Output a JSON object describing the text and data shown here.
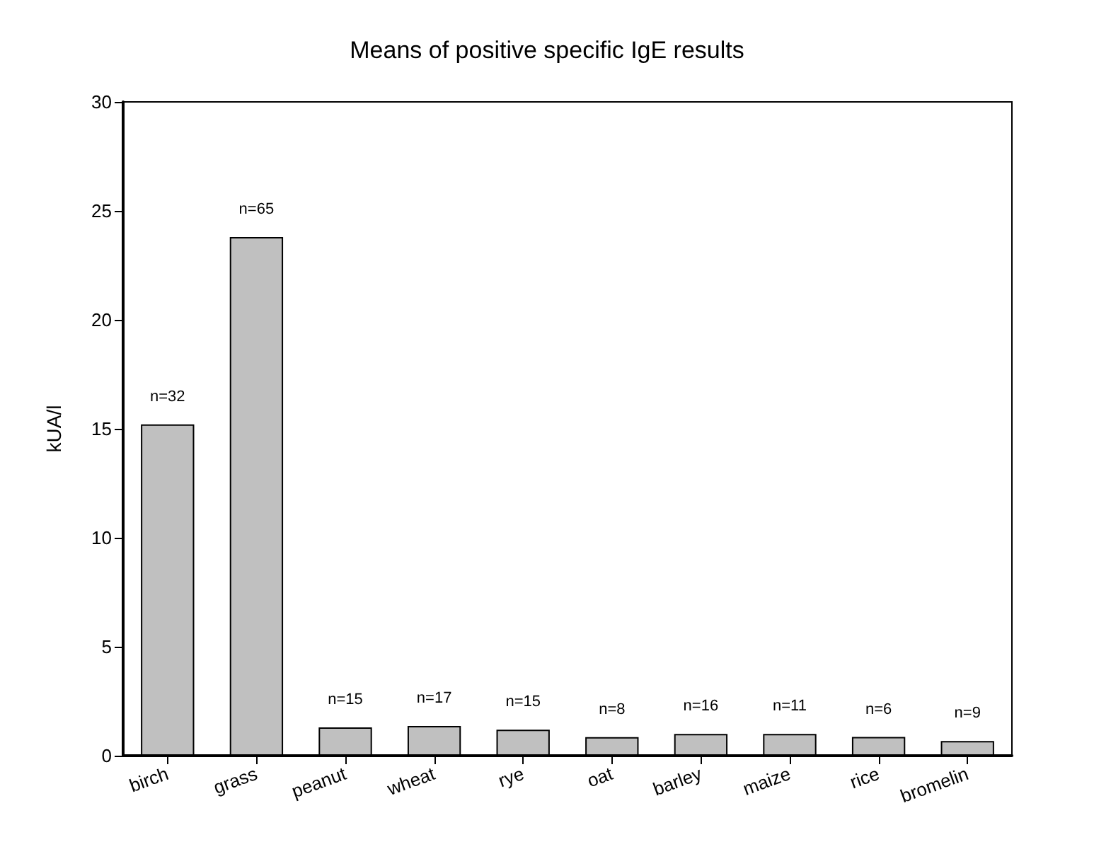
{
  "chart_data": {
    "type": "bar",
    "title": "Means of positive specific IgE results",
    "ylabel": "kUA/l",
    "categories": [
      "birch",
      "grass",
      "peanut",
      "wheat",
      "rye",
      "oat",
      "barley",
      "maize",
      "rice",
      "bromelin"
    ],
    "values": [
      15.2,
      23.8,
      1.3,
      1.36,
      1.19,
      0.85,
      1.0,
      1.0,
      0.86,
      0.67
    ],
    "annotations": [
      {
        "text": "n=32",
        "x": "birch",
        "y": 15.2
      },
      {
        "text": "n=65",
        "x": "grass",
        "y": 23.8
      },
      {
        "text": "n=15",
        "x": "peanut",
        "y": 1.3
      },
      {
        "text": "n=17",
        "x": "wheat",
        "y": 1.36
      },
      {
        "text": "n=15",
        "x": "rye",
        "y": 1.19
      },
      {
        "text": "n=8",
        "x": "oat",
        "y": 0.85
      },
      {
        "text": "n=16",
        "x": "barley",
        "y": 1.0
      },
      {
        "text": "n=11",
        "x": "maize",
        "y": 1.0
      },
      {
        "text": "n=6",
        "x": "rice",
        "y": 0.86
      },
      {
        "text": "n=9",
        "x": "bromelin",
        "y": 0.67
      }
    ],
    "color": "#c0c0c0",
    "ylim": [
      0,
      30
    ],
    "yticks": [
      0,
      5,
      10,
      15,
      20,
      25,
      30
    ],
    "grid": false
  }
}
